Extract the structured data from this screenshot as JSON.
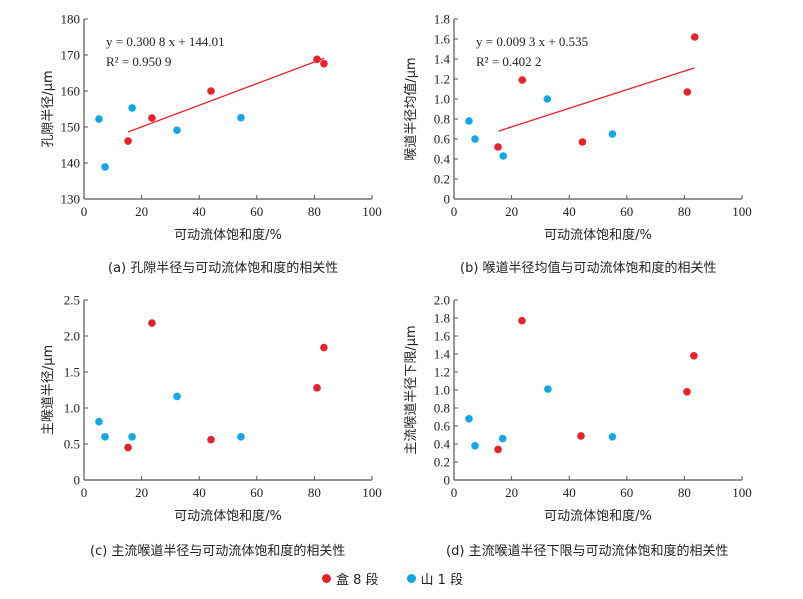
{
  "legend": {
    "items": [
      {
        "label": "盒 8 段",
        "color": "#e8212b"
      },
      {
        "label": "山 1 段",
        "color": "#10a8e8"
      }
    ]
  },
  "chart_data": [
    {
      "type": "scatter",
      "panel": "a",
      "caption": "(a) 孔隙半径与可动流体饱和度的相关性",
      "xlabel": "可动流体饱和度/%",
      "ylabel": "孔隙半径/μm",
      "xlim": [
        0,
        100
      ],
      "ylim": [
        130,
        180
      ],
      "xticks": [
        "0",
        "20",
        "40",
        "60",
        "80",
        "100"
      ],
      "yticks": [
        "130",
        "140",
        "150",
        "160",
        "170",
        "180"
      ],
      "xtick_values": [
        0,
        20,
        40,
        60,
        80,
        100
      ],
      "ytick_values": [
        130,
        140,
        150,
        160,
        170,
        180
      ],
      "series": [
        {
          "name": "盒 8 段",
          "color": "#e8212b",
          "x": [
            15.3,
            23.6,
            44.1,
            80.9,
            83.3
          ],
          "y": [
            146.1,
            152.5,
            160.0,
            168.8,
            167.6
          ]
        },
        {
          "name": "山 1 段",
          "color": "#10a8e8",
          "x": [
            5.2,
            7.3,
            16.7,
            32.3,
            54.5
          ],
          "y": [
            152.2,
            138.9,
            155.3,
            149.1,
            152.6
          ]
        }
      ],
      "trendline": {
        "slope": 0.3008,
        "intercept": 144.01,
        "x_range": [
          15.3,
          83.3
        ],
        "color": "#e8212b",
        "equation": "y = 0.300 8 x + 144.01",
        "r2": "R² = 0.950 9"
      }
    },
    {
      "type": "scatter",
      "panel": "b",
      "caption": "(b) 喉道半径均值与可动流体饱和度的相关性",
      "xlabel": "可动流体饱和度/%",
      "ylabel": "喉道半径均值/μm",
      "xlim": [
        0,
        100
      ],
      "ylim": [
        0,
        1.8
      ],
      "xticks": [
        "0",
        "20",
        "40",
        "60",
        "80",
        "100"
      ],
      "yticks": [
        "0",
        "0.2",
        "0.4",
        "0.6",
        "0.8",
        "1.0",
        "1.2",
        "1.4",
        "1.6",
        "1.8"
      ],
      "xtick_values": [
        0,
        20,
        40,
        60,
        80,
        100
      ],
      "ytick_values": [
        0,
        0.2,
        0.4,
        0.6,
        0.8,
        1.0,
        1.2,
        1.4,
        1.6,
        1.8
      ],
      "series": [
        {
          "name": "盒 8 段",
          "color": "#e8212b",
          "x": [
            15.3,
            23.7,
            44.6,
            81.0,
            83.6
          ],
          "y": [
            0.52,
            1.19,
            0.57,
            1.07,
            1.62
          ]
        },
        {
          "name": "山 1 段",
          "color": "#10a8e8",
          "x": [
            5.2,
            7.3,
            17.1,
            32.4,
            55.0
          ],
          "y": [
            0.78,
            0.6,
            0.43,
            1.0,
            0.65
          ]
        }
      ],
      "trendline": {
        "slope": 0.0093,
        "intercept": 0.535,
        "x_range": [
          15.5,
          83.5
        ],
        "color": "#e8212b",
        "equation": "y = 0.009 3 x + 0.535",
        "r2": "R² = 0.402 2"
      }
    },
    {
      "type": "scatter",
      "panel": "c",
      "caption": "(c) 主流喉道半径与可动流体饱和度的相关性",
      "xlabel": "可动流体饱和度/%",
      "ylabel": "主喉道半径/μm",
      "xlim": [
        0,
        100
      ],
      "ylim": [
        0,
        2.5
      ],
      "xticks": [
        "0",
        "20",
        "40",
        "60",
        "80",
        "100"
      ],
      "yticks": [
        "0",
        "0.5",
        "1.0",
        "1.5",
        "2.0",
        "2.5"
      ],
      "xtick_values": [
        0,
        20,
        40,
        60,
        80,
        100
      ],
      "ytick_values": [
        0,
        0.5,
        1.0,
        1.5,
        2.0,
        2.5
      ],
      "series": [
        {
          "name": "盒 8 段",
          "color": "#e8212b",
          "x": [
            15.3,
            23.6,
            44.1,
            80.9,
            83.3
          ],
          "y": [
            0.45,
            2.18,
            0.56,
            1.28,
            1.84
          ]
        },
        {
          "name": "山 1 段",
          "color": "#10a8e8",
          "x": [
            5.2,
            7.3,
            16.7,
            32.3,
            54.5
          ],
          "y": [
            0.81,
            0.6,
            0.6,
            1.16,
            0.6
          ]
        }
      ]
    },
    {
      "type": "scatter",
      "panel": "d",
      "caption": "(d) 主流喉道半径下限与可动流体饱和度的相关性",
      "xlabel": "可动流体饱和度/%",
      "ylabel": "主流喉道半径下限/μm",
      "xlim": [
        0,
        100
      ],
      "ylim": [
        0,
        2.0
      ],
      "xticks": [
        "0",
        "20",
        "40",
        "60",
        "80",
        "100"
      ],
      "yticks": [
        "0",
        "0.2",
        "0.4",
        "0.6",
        "0.8",
        "1.0",
        "1.2",
        "1.4",
        "1.6",
        "1.8",
        "2.0"
      ],
      "xtick_values": [
        0,
        20,
        40,
        60,
        80,
        100
      ],
      "ytick_values": [
        0,
        0.2,
        0.4,
        0.6,
        0.8,
        1.0,
        1.2,
        1.4,
        1.6,
        1.8,
        2.0
      ],
      "series": [
        {
          "name": "盒 8 段",
          "color": "#e8212b",
          "x": [
            15.3,
            23.6,
            44.1,
            80.9,
            83.3
          ],
          "y": [
            0.34,
            1.77,
            0.49,
            0.98,
            1.38
          ]
        },
        {
          "name": "山 1 段",
          "color": "#10a8e8",
          "x": [
            5.2,
            7.3,
            16.9,
            32.6,
            55.0
          ],
          "y": [
            0.68,
            0.38,
            0.46,
            1.01,
            0.48
          ]
        }
      ]
    }
  ]
}
